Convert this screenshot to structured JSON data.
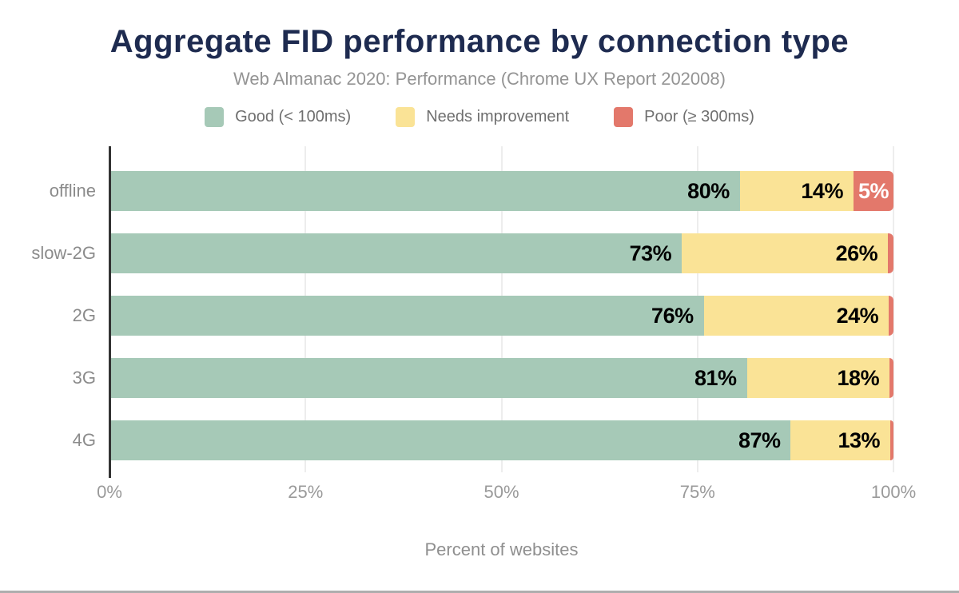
{
  "header": {
    "title": "Aggregate FID performance by connection type",
    "subtitle": "Web Almanac 2020: Performance (Chrome UX Report 202008)"
  },
  "colors": {
    "good": "#a6c9b7",
    "needs_improvement": "#fae396",
    "poor": "#e3786b",
    "title_text": "#1e2b50",
    "axis_line": "#333333",
    "gridline": "#ededed",
    "muted_text": "#8f8f8f"
  },
  "legend": {
    "items": [
      {
        "label": "Good (< 100ms)",
        "color": "#a6c9b7"
      },
      {
        "label": "Needs improvement",
        "color": "#fae396"
      },
      {
        "label": "Poor (≥ 300ms)",
        "color": "#e3786b"
      }
    ]
  },
  "chart_data": {
    "type": "bar",
    "orientation": "horizontal",
    "stacked": true,
    "title": "Aggregate FID performance by connection type",
    "subtitle": "Web Almanac 2020: Performance (Chrome UX Report 202008)",
    "categories": [
      "offline",
      "slow-2G",
      "2G",
      "3G",
      "4G"
    ],
    "series": [
      {
        "name": "Good (< 100ms)",
        "values": [
          80,
          73,
          76,
          81,
          87
        ]
      },
      {
        "name": "Needs improvement",
        "values": [
          14,
          26,
          24,
          18,
          13
        ]
      },
      {
        "name": "Poor (≥ 300ms)",
        "values": [
          5,
          1,
          1,
          1,
          1
        ]
      }
    ],
    "xlabel": "Percent of websites",
    "xlim": [
      0,
      100
    ],
    "x_ticks": [
      "0%",
      "25%",
      "50%",
      "75%",
      "100%"
    ],
    "x_tick_positions": [
      0,
      25,
      50,
      75,
      100
    ],
    "grid": "vertical",
    "legend_position": "top",
    "rows": [
      {
        "category": "offline",
        "segments": [
          {
            "name": "good",
            "pct": 80.4,
            "label": "80%"
          },
          {
            "name": "needs_improvement",
            "pct": 14.5,
            "label": "14%"
          },
          {
            "name": "poor",
            "pct": 5.1,
            "label": "5%"
          }
        ]
      },
      {
        "category": "slow-2G",
        "segments": [
          {
            "name": "good",
            "pct": 73.0,
            "label": "73%"
          },
          {
            "name": "needs_improvement",
            "pct": 26.3,
            "label": "26%"
          },
          {
            "name": "poor",
            "pct": 0.7,
            "label": ""
          }
        ]
      },
      {
        "category": "2G",
        "segments": [
          {
            "name": "good",
            "pct": 75.8,
            "label": "76%"
          },
          {
            "name": "needs_improvement",
            "pct": 23.6,
            "label": "24%"
          },
          {
            "name": "poor",
            "pct": 0.6,
            "label": ""
          }
        ]
      },
      {
        "category": "3G",
        "segments": [
          {
            "name": "good",
            "pct": 81.3,
            "label": "81%"
          },
          {
            "name": "needs_improvement",
            "pct": 18.2,
            "label": "18%"
          },
          {
            "name": "poor",
            "pct": 0.5,
            "label": ""
          }
        ]
      },
      {
        "category": "4G",
        "segments": [
          {
            "name": "good",
            "pct": 86.9,
            "label": "87%"
          },
          {
            "name": "needs_improvement",
            "pct": 12.7,
            "label": "13%"
          },
          {
            "name": "poor",
            "pct": 0.4,
            "label": ""
          }
        ]
      }
    ]
  }
}
